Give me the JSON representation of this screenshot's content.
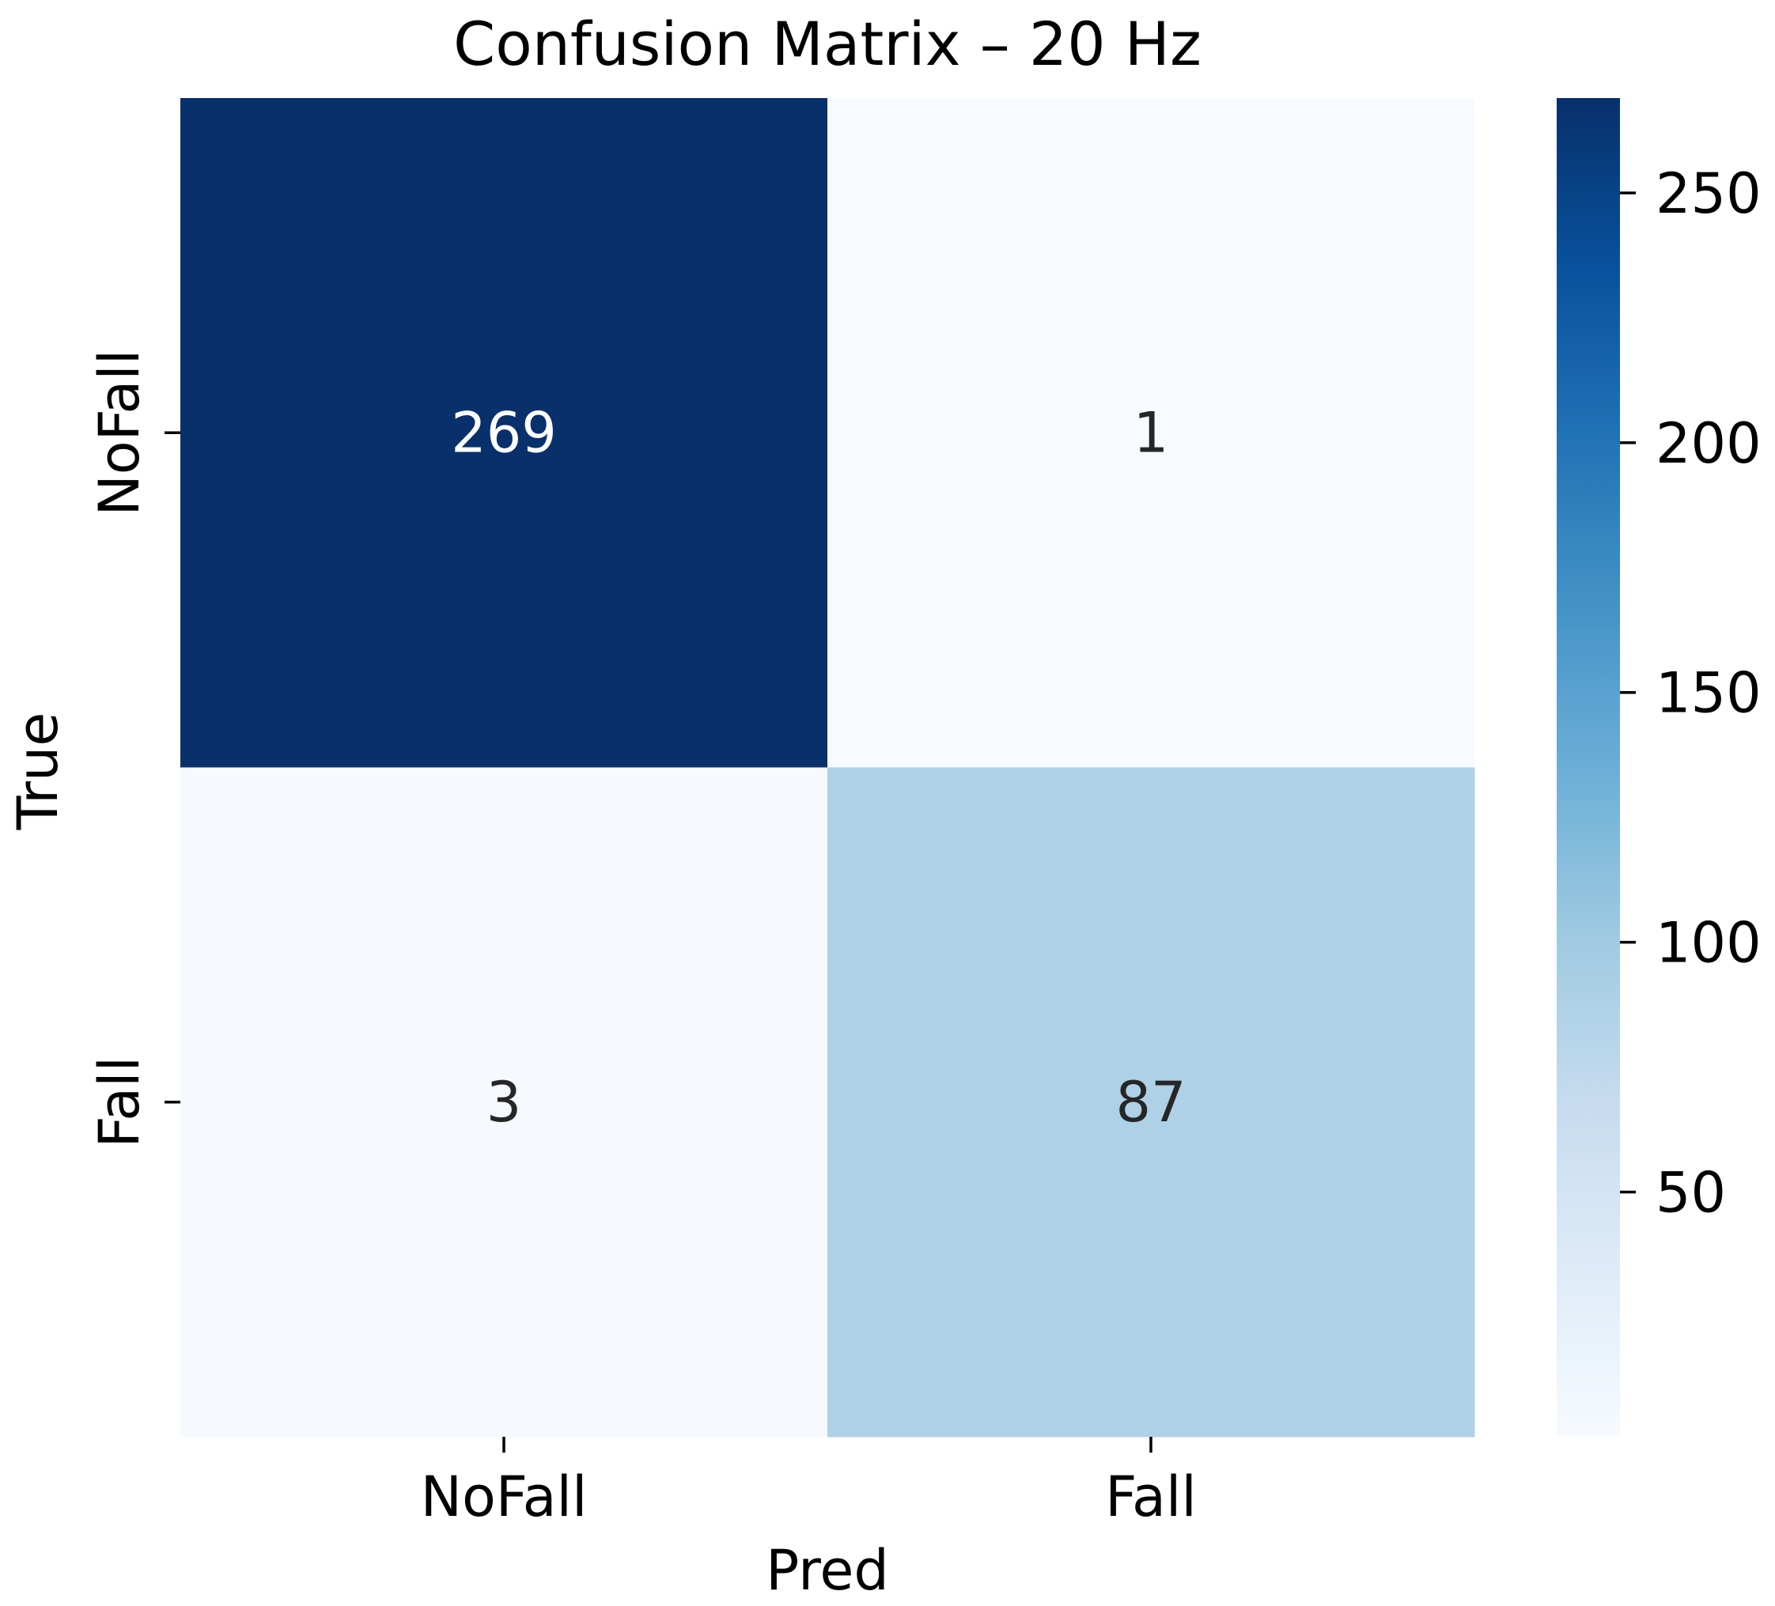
{
  "chart_data": {
    "type": "heatmap",
    "title": "Confusion Matrix – 20 Hz",
    "xlabel": "Pred",
    "ylabel": "True",
    "x_categories": [
      "NoFall",
      "Fall"
    ],
    "y_categories": [
      "NoFall",
      "Fall"
    ],
    "values": [
      [
        269,
        1
      ],
      [
        3,
        87
      ]
    ],
    "cell_labels": [
      [
        "269",
        "1"
      ],
      [
        "3",
        "87"
      ]
    ],
    "colormap": "Blues",
    "colorbar": {
      "range": [
        1,
        269
      ],
      "ticks": [
        50,
        100,
        150,
        200,
        250
      ],
      "tick_labels": [
        "50",
        "100",
        "150",
        "200",
        "250"
      ]
    },
    "colors": {
      "low": "#f7fbff",
      "high": "#08306b",
      "light_text": "#ffffff",
      "dark_text": "#262626"
    }
  }
}
